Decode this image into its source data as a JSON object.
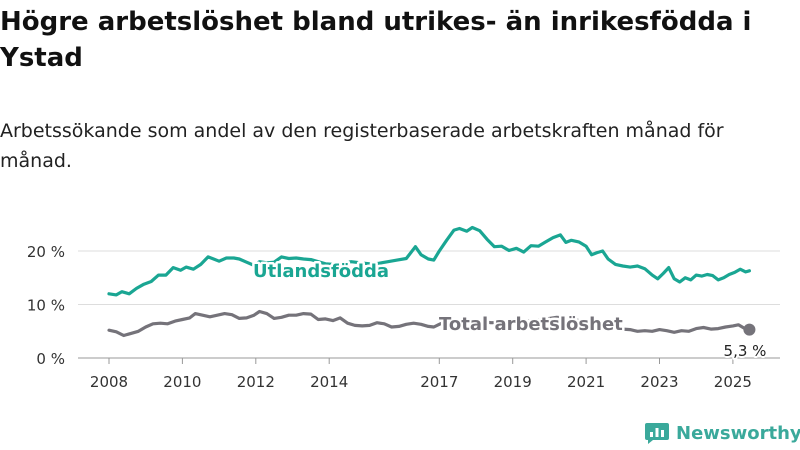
{
  "title": "Högre arbetslöshet bland utrikes- än inrikesfödda i Ystad",
  "subtitle": "Arbetssökande som andel av den registerbaserade arbetskraften månad för månad.",
  "brand": {
    "name": "Newsworthy",
    "color": "#3aa99b",
    "icon": "newsworthy-logo-icon"
  },
  "chart_data": {
    "type": "line",
    "title": "Högre arbetslöshet bland utrikes- än inrikesfödda i Ystad",
    "xlabel": "",
    "ylabel": "",
    "ylim": [
      0,
      25
    ],
    "y_ticks": [
      {
        "value": 0,
        "label": "0 %"
      },
      {
        "value": 10,
        "label": "10 %"
      },
      {
        "value": 20,
        "label": "20 %"
      }
    ],
    "x_ticks": [
      {
        "value": 2008,
        "label": "2008"
      },
      {
        "value": 2010,
        "label": "2010"
      },
      {
        "value": 2012,
        "label": "2012"
      },
      {
        "value": 2014,
        "label": "2014"
      },
      {
        "value": 2017,
        "label": "2017"
      },
      {
        "value": 2019,
        "label": "2019"
      },
      {
        "value": 2021,
        "label": "2021"
      },
      {
        "value": 2023,
        "label": "2023"
      },
      {
        "value": 2025,
        "label": "2025"
      }
    ],
    "grid": true,
    "legend": "inline labels",
    "series": [
      {
        "name": "Utlandsfödda",
        "color": "#1aa693",
        "points": [
          [
            2008.0,
            12.0
          ],
          [
            2008.2,
            11.8
          ],
          [
            2008.35,
            12.4
          ],
          [
            2008.55,
            12.0
          ],
          [
            2008.75,
            13.0
          ],
          [
            2008.95,
            13.8
          ],
          [
            2009.15,
            14.3
          ],
          [
            2009.35,
            15.5
          ],
          [
            2009.55,
            15.5
          ],
          [
            2009.75,
            16.9
          ],
          [
            2009.95,
            16.4
          ],
          [
            2010.1,
            17.0
          ],
          [
            2010.3,
            16.6
          ],
          [
            2010.5,
            17.5
          ],
          [
            2010.7,
            18.9
          ],
          [
            2010.85,
            18.5
          ],
          [
            2011.0,
            18.1
          ],
          [
            2011.2,
            18.7
          ],
          [
            2011.4,
            18.7
          ],
          [
            2011.55,
            18.5
          ],
          [
            2011.75,
            17.9
          ],
          [
            2011.95,
            17.3
          ],
          [
            2012.1,
            18.0
          ],
          [
            2012.3,
            17.8
          ],
          [
            2012.5,
            17.9
          ],
          [
            2012.7,
            18.9
          ],
          [
            2012.9,
            18.6
          ],
          [
            2013.1,
            18.7
          ],
          [
            2013.3,
            18.5
          ],
          [
            2013.5,
            18.4
          ],
          [
            2013.7,
            18.0
          ],
          [
            2013.9,
            17.6
          ],
          [
            2014.1,
            17.5
          ],
          [
            2014.35,
            17.7
          ],
          [
            2014.6,
            18.0
          ],
          [
            2014.85,
            17.8
          ],
          [
            2015.1,
            17.6
          ],
          [
            2015.35,
            17.7
          ],
          [
            2015.6,
            18.0
          ],
          [
            2015.85,
            18.3
          ],
          [
            2016.1,
            18.6
          ],
          [
            2016.35,
            20.8
          ],
          [
            2016.5,
            19.3
          ],
          [
            2016.7,
            18.5
          ],
          [
            2016.85,
            18.3
          ],
          [
            2017.0,
            20.0
          ],
          [
            2017.2,
            22.0
          ],
          [
            2017.4,
            23.9
          ],
          [
            2017.55,
            24.2
          ],
          [
            2017.75,
            23.7
          ],
          [
            2017.9,
            24.4
          ],
          [
            2018.1,
            23.8
          ],
          [
            2018.3,
            22.2
          ],
          [
            2018.5,
            20.8
          ],
          [
            2018.7,
            20.9
          ],
          [
            2018.9,
            20.1
          ],
          [
            2019.1,
            20.5
          ],
          [
            2019.3,
            19.8
          ],
          [
            2019.5,
            21.0
          ],
          [
            2019.7,
            20.9
          ],
          [
            2019.9,
            21.7
          ],
          [
            2020.1,
            22.5
          ],
          [
            2020.3,
            23.0
          ],
          [
            2020.45,
            21.6
          ],
          [
            2020.6,
            22.0
          ],
          [
            2020.8,
            21.7
          ],
          [
            2021.0,
            20.9
          ],
          [
            2021.15,
            19.3
          ],
          [
            2021.3,
            19.7
          ],
          [
            2021.45,
            20.0
          ],
          [
            2021.6,
            18.5
          ],
          [
            2021.8,
            17.5
          ],
          [
            2022.0,
            17.2
          ],
          [
            2022.2,
            17.0
          ],
          [
            2022.4,
            17.2
          ],
          [
            2022.6,
            16.7
          ],
          [
            2022.8,
            15.5
          ],
          [
            2022.95,
            14.8
          ],
          [
            2023.1,
            15.8
          ],
          [
            2023.25,
            16.9
          ],
          [
            2023.4,
            14.8
          ],
          [
            2023.55,
            14.2
          ],
          [
            2023.7,
            15.0
          ],
          [
            2023.85,
            14.6
          ],
          [
            2024.0,
            15.5
          ],
          [
            2024.15,
            15.3
          ],
          [
            2024.3,
            15.6
          ],
          [
            2024.45,
            15.4
          ],
          [
            2024.6,
            14.6
          ],
          [
            2024.75,
            15.0
          ],
          [
            2024.9,
            15.6
          ],
          [
            2025.05,
            16.0
          ],
          [
            2025.2,
            16.6
          ],
          [
            2025.35,
            16.1
          ],
          [
            2025.45,
            16.3
          ]
        ]
      },
      {
        "name": "Total arbetslöshet",
        "color": "#75737a",
        "end_label": "5,3 %",
        "points": [
          [
            2008.0,
            5.2
          ],
          [
            2008.2,
            4.9
          ],
          [
            2008.4,
            4.2
          ],
          [
            2008.6,
            4.6
          ],
          [
            2008.8,
            5.0
          ],
          [
            2009.0,
            5.8
          ],
          [
            2009.2,
            6.4
          ],
          [
            2009.4,
            6.5
          ],
          [
            2009.6,
            6.4
          ],
          [
            2009.8,
            6.9
          ],
          [
            2010.0,
            7.2
          ],
          [
            2010.2,
            7.5
          ],
          [
            2010.35,
            8.3
          ],
          [
            2010.55,
            8.0
          ],
          [
            2010.75,
            7.7
          ],
          [
            2010.95,
            8.0
          ],
          [
            2011.15,
            8.3
          ],
          [
            2011.35,
            8.1
          ],
          [
            2011.55,
            7.4
          ],
          [
            2011.75,
            7.5
          ],
          [
            2011.95,
            8.0
          ],
          [
            2012.1,
            8.7
          ],
          [
            2012.3,
            8.3
          ],
          [
            2012.5,
            7.4
          ],
          [
            2012.7,
            7.6
          ],
          [
            2012.9,
            8.0
          ],
          [
            2013.1,
            8.0
          ],
          [
            2013.3,
            8.3
          ],
          [
            2013.5,
            8.2
          ],
          [
            2013.7,
            7.2
          ],
          [
            2013.9,
            7.3
          ],
          [
            2014.1,
            7.0
          ],
          [
            2014.3,
            7.5
          ],
          [
            2014.5,
            6.5
          ],
          [
            2014.7,
            6.1
          ],
          [
            2014.9,
            6.0
          ],
          [
            2015.1,
            6.1
          ],
          [
            2015.3,
            6.6
          ],
          [
            2015.5,
            6.4
          ],
          [
            2015.7,
            5.8
          ],
          [
            2015.9,
            5.9
          ],
          [
            2016.1,
            6.3
          ],
          [
            2016.3,
            6.5
          ],
          [
            2016.5,
            6.3
          ],
          [
            2016.7,
            5.9
          ],
          [
            2016.85,
            5.8
          ],
          [
            2017.0,
            6.3
          ],
          [
            2017.2,
            6.9
          ],
          [
            2017.4,
            7.2
          ],
          [
            2017.6,
            7.0
          ],
          [
            2017.8,
            6.9
          ],
          [
            2018.0,
            7.1
          ],
          [
            2018.2,
            6.8
          ],
          [
            2018.4,
            6.6
          ],
          [
            2018.6,
            6.6
          ],
          [
            2018.8,
            6.5
          ],
          [
            2019.0,
            6.6
          ],
          [
            2019.2,
            6.7
          ],
          [
            2019.4,
            6.9
          ],
          [
            2019.6,
            7.0
          ],
          [
            2019.8,
            7.2
          ],
          [
            2020.0,
            7.4
          ],
          [
            2020.2,
            7.6
          ],
          [
            2020.4,
            7.5
          ],
          [
            2020.6,
            7.3
          ],
          [
            2020.8,
            7.0
          ],
          [
            2021.0,
            6.8
          ],
          [
            2021.2,
            6.6
          ],
          [
            2021.4,
            6.2
          ],
          [
            2021.6,
            5.9
          ],
          [
            2021.8,
            5.6
          ],
          [
            2022.0,
            5.4
          ],
          [
            2022.2,
            5.3
          ],
          [
            2022.4,
            5.0
          ],
          [
            2022.6,
            5.1
          ],
          [
            2022.8,
            5.0
          ],
          [
            2023.0,
            5.3
          ],
          [
            2023.2,
            5.1
          ],
          [
            2023.4,
            4.8
          ],
          [
            2023.6,
            5.1
          ],
          [
            2023.8,
            5.0
          ],
          [
            2024.0,
            5.5
          ],
          [
            2024.2,
            5.7
          ],
          [
            2024.4,
            5.4
          ],
          [
            2024.6,
            5.5
          ],
          [
            2024.8,
            5.8
          ],
          [
            2025.0,
            6.0
          ],
          [
            2025.15,
            6.2
          ],
          [
            2025.3,
            5.6
          ],
          [
            2025.45,
            5.3
          ]
        ]
      }
    ]
  }
}
